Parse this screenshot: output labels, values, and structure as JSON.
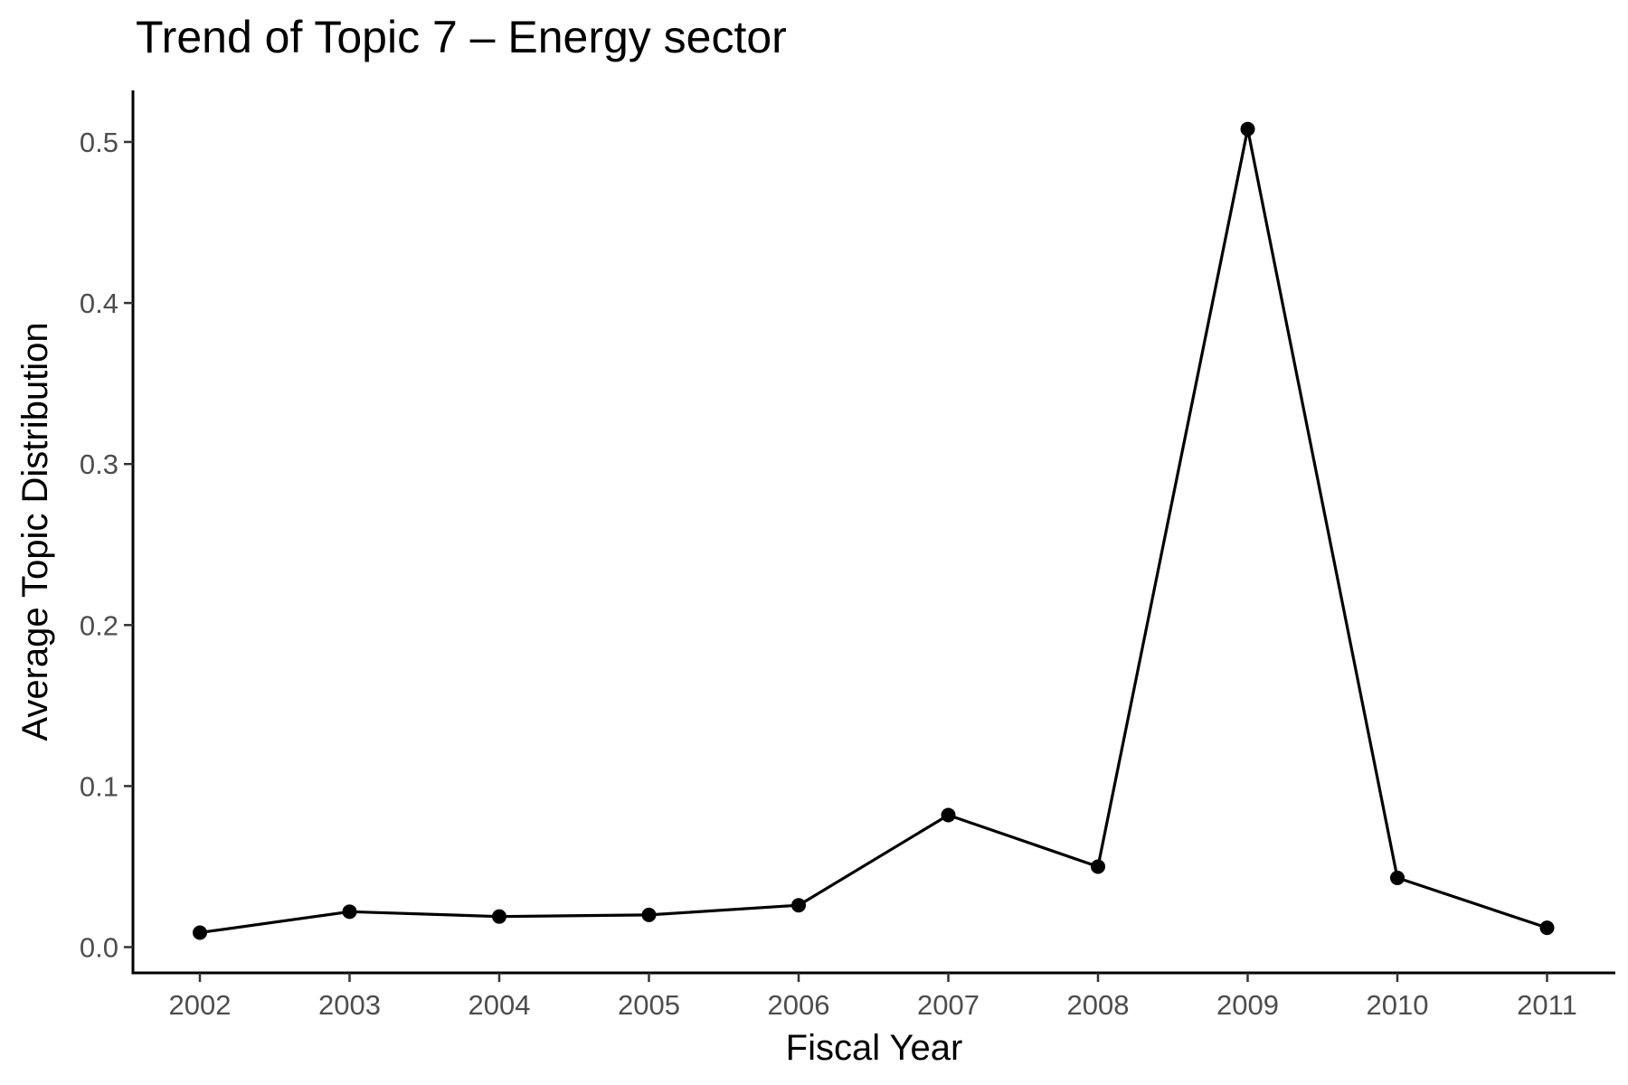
{
  "chart_data": {
    "type": "line",
    "title": "Trend of Topic 7 – Energy sector",
    "xlabel": "Fiscal Year",
    "ylabel": "Average Topic Distribution",
    "x": [
      "2002",
      "2003",
      "2004",
      "2005",
      "2006",
      "2007",
      "2008",
      "2009",
      "2010",
      "2011"
    ],
    "values": [
      0.009,
      0.022,
      0.019,
      0.02,
      0.026,
      0.082,
      0.05,
      0.508,
      0.043,
      0.012
    ],
    "yticks": [
      0.0,
      0.1,
      0.2,
      0.3,
      0.4,
      0.5
    ],
    "ytick_labels": [
      "0.0",
      "0.1",
      "0.2",
      "0.3",
      "0.4",
      "0.5"
    ],
    "ylim": [
      -0.016,
      0.532
    ],
    "grid": false,
    "legend": "none",
    "line_color": "#000000",
    "point_color": "#000000"
  }
}
